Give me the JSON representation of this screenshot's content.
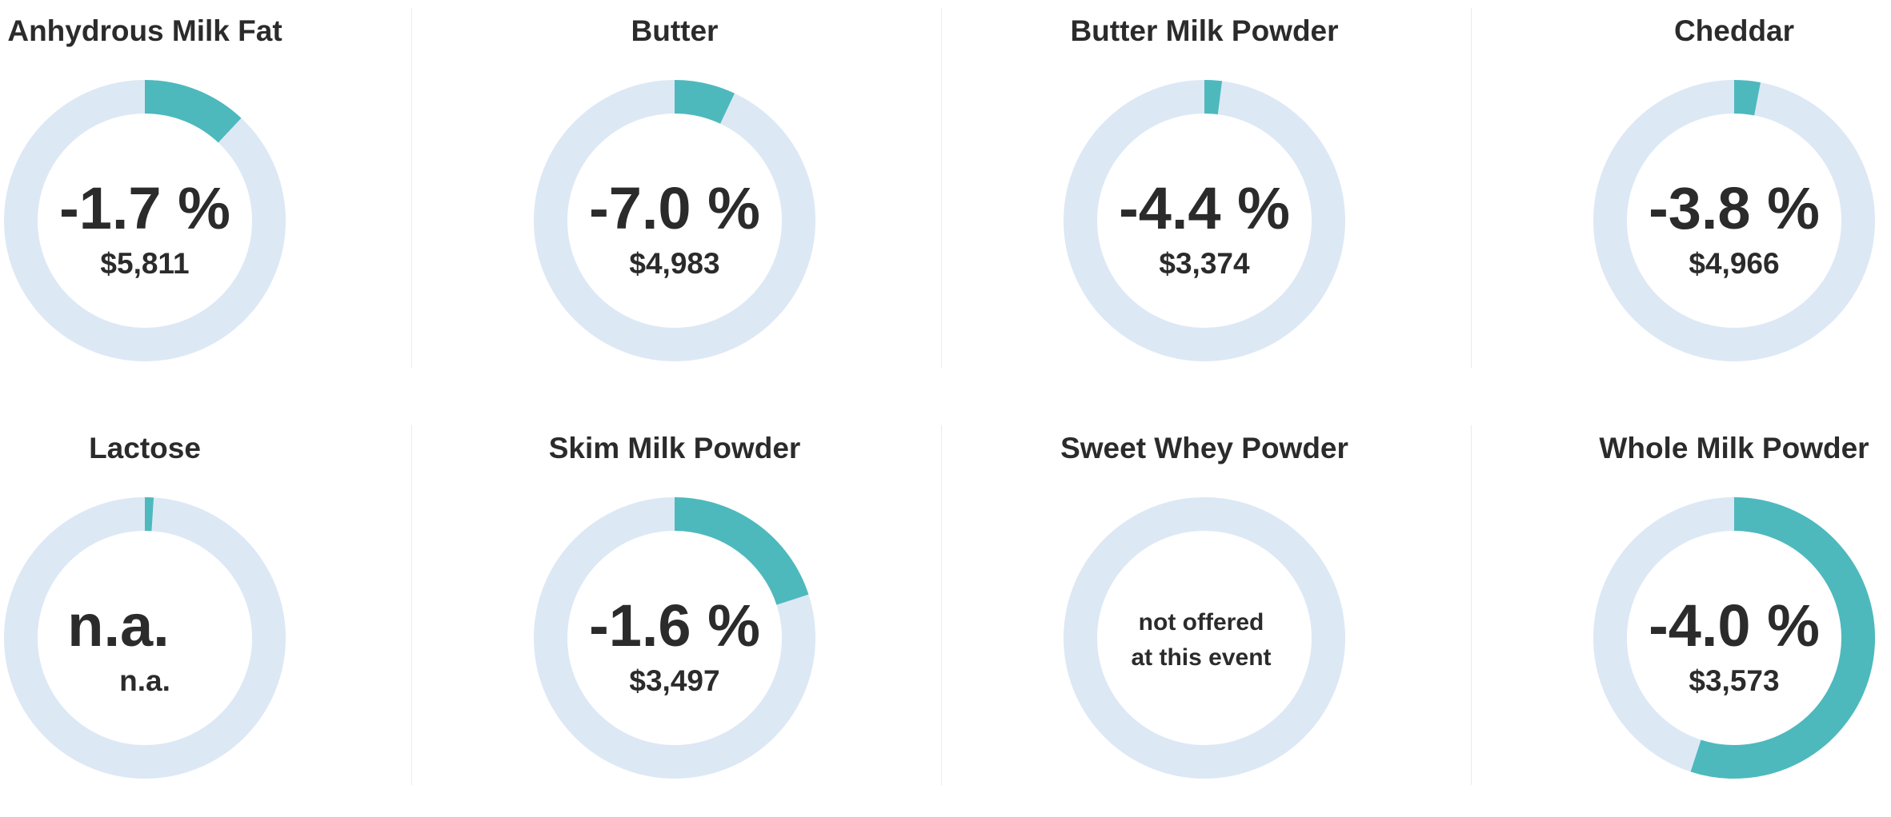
{
  "colors": {
    "track": "#dde8f5",
    "fill": "#4db9bd",
    "text": "#2b2b2b",
    "divider": "#ebebeb"
  },
  "chart_data": [
    {
      "type": "pie",
      "title": "Anhydrous Milk Fat",
      "change": "-1.7 %",
      "price": "$5,811",
      "fraction": 0.12
    },
    {
      "type": "pie",
      "title": "Butter",
      "change": "-7.0 %",
      "price": "$4,983",
      "fraction": 0.07
    },
    {
      "type": "pie",
      "title": "Butter Milk Powder",
      "change": "-4.4 %",
      "price": "$3,374",
      "fraction": 0.02
    },
    {
      "type": "pie",
      "title": "Cheddar",
      "change": "-3.8 %",
      "price": "$4,966",
      "fraction": 0.03
    },
    {
      "type": "pie",
      "title": "Lactose",
      "change": "n.a.",
      "price": "n.a.",
      "fraction": 0.01
    },
    {
      "type": "pie",
      "title": "Skim Milk Powder",
      "change": "-1.6 %",
      "price": "$3,497",
      "fraction": 0.2
    },
    {
      "type": "pie",
      "title": "Sweet Whey Powder",
      "note_line1": "not offered",
      "note_line2": "at this event",
      "fraction": 0
    },
    {
      "type": "pie",
      "title": "Whole Milk Powder",
      "change": "-4.0 %",
      "price": "$3,573",
      "fraction": 0.55
    }
  ]
}
